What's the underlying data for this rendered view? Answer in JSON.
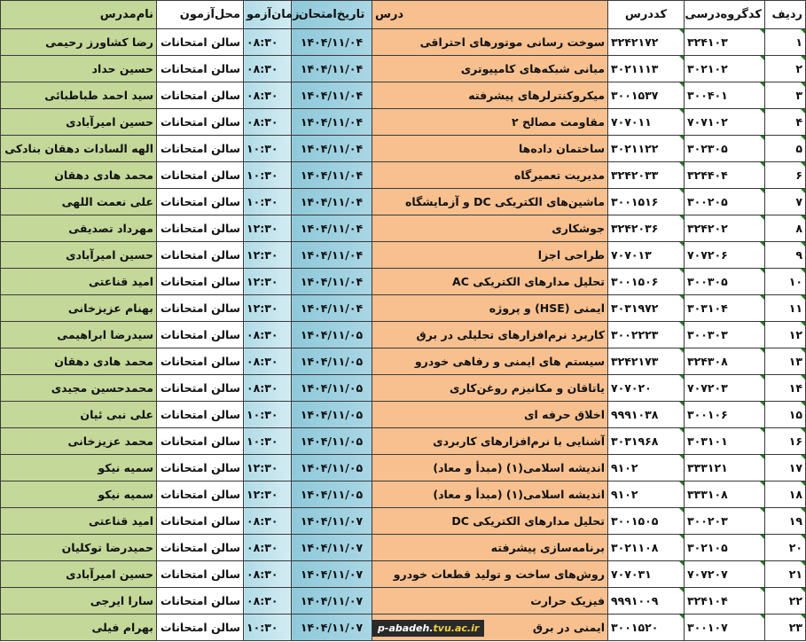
{
  "headers": {
    "row": "ردیف",
    "group_code": "کدگروه‌درسی",
    "course_code": "کددرس",
    "course": "درس",
    "date": "تاریخ‌امتحان",
    "time": "زمان‌آزمو",
    "place": "محل‌آزمون",
    "teacher": "نام‌مدرس"
  },
  "rows": [
    {
      "row": "۱",
      "group_code": "۳۲۴۱۰۳",
      "course_code": "۳۲۴۲۱۷۲",
      "course": "سوخت رسانی موتورهای احتراقی",
      "date": "۱۴۰۴/۱۱/۰۴",
      "time": "۰۸:۳۰",
      "place": "سالن امتحانات",
      "teacher": "رضا کشاورز رحیمی"
    },
    {
      "row": "۲",
      "group_code": "۳۰۲۱۰۲",
      "course_code": "۳۰۲۱۱۱۳",
      "course": "مبانی شبکه‌های کامپیوتری",
      "date": "۱۴۰۴/۱۱/۰۴",
      "time": "۰۸:۳۰",
      "place": "سالن امتحانات",
      "teacher": "حسین حداد"
    },
    {
      "row": "۳",
      "group_code": "۳۰۰۴۰۱",
      "course_code": "۳۰۰۱۵۳۷",
      "course": "میکروکنترلرهای پیشرفته",
      "date": "۱۴۰۴/۱۱/۰۴",
      "time": "۰۸:۳۰",
      "place": "سالن امتحانات",
      "teacher": "سید احمد طباطبائی"
    },
    {
      "row": "۴",
      "group_code": "۷۰۷۱۰۲",
      "course_code": "۷۰۷۰۱۱",
      "course": "مقاومت مصالح ۲",
      "date": "۱۴۰۴/۱۱/۰۴",
      "time": "۰۸:۳۰",
      "place": "سالن امتحانات",
      "teacher": "حسین امیرآبادی"
    },
    {
      "row": "۵",
      "group_code": "۳۰۲۳۰۵",
      "course_code": "۳۰۲۱۱۲۲",
      "course": "ساختمان داده‌ها",
      "date": "۱۴۰۴/۱۱/۰۴",
      "time": "۱۰:۳۰",
      "place": "سالن امتحانات",
      "teacher": "الهه السادات دهقان بنادکی"
    },
    {
      "row": "۶",
      "group_code": "۳۲۴۴۰۴",
      "course_code": "۳۲۴۲۰۳۳",
      "course": "مدیریت تعمیرگاه",
      "date": "۱۴۰۴/۱۱/۰۴",
      "time": "۱۰:۳۰",
      "place": "سالن امتحانات",
      "teacher": "محمد هادی دهقان"
    },
    {
      "row": "۷",
      "group_code": "۳۰۰۲۰۵",
      "course_code": "۳۰۰۱۵۱۶",
      "course": "ماشین‌های الکتریکی DC و آزمایشگاه",
      "date": "۱۴۰۴/۱۱/۰۴",
      "time": "۱۰:۳۰",
      "place": "سالن امتحانات",
      "teacher": "علی نعمت اللهی"
    },
    {
      "row": "۸",
      "group_code": "۳۲۴۲۰۲",
      "course_code": "۳۲۴۲۰۳۶",
      "course": "جوشکاری",
      "date": "۱۴۰۴/۱۱/۰۴",
      "time": "۱۲:۳۰",
      "place": "سالن امتحانات",
      "teacher": "مهرداد تصدیقی"
    },
    {
      "row": "۹",
      "group_code": "۷۰۷۲۰۶",
      "course_code": "۷۰۷۰۱۳",
      "course": "طراحی اجزا",
      "date": "۱۴۰۴/۱۱/۰۴",
      "time": "۱۲:۳۰",
      "place": "سالن امتحانات",
      "teacher": "حسین امیرآبادی"
    },
    {
      "row": "۱۰",
      "group_code": "۳۰۰۳۰۵",
      "course_code": "۳۰۰۱۵۰۶",
      "course": "تحلیل مدارهای الکتریکی AC",
      "date": "۱۴۰۴/۱۱/۰۴",
      "time": "۱۲:۳۰",
      "place": "سالن امتحانات",
      "teacher": "امید قناعتی"
    },
    {
      "row": "۱۱",
      "group_code": "۳۰۳۱۰۴",
      "course_code": "۳۰۳۱۹۷۲",
      "course": "ایمنی (HSE) و پروژه",
      "date": "۱۴۰۴/۱۱/۰۴",
      "time": "۱۲:۳۰",
      "place": "سالن امتحانات",
      "teacher": "بهنام عزیزخانی"
    },
    {
      "row": "۱۲",
      "group_code": "۳۰۰۳۰۳",
      "course_code": "۳۰۰۲۲۲۳",
      "course": "کاربرد نرم‌افزارهای تحلیلی در برق",
      "date": "۱۴۰۴/۱۱/۰۵",
      "time": "۰۸:۳۰",
      "place": "سالن امتحانات",
      "teacher": "سیدرضا ابراهیمی"
    },
    {
      "row": "۱۳",
      "group_code": "۳۲۴۳۰۸",
      "course_code": "۳۲۴۲۱۷۳",
      "course": "سیستم های ایمنی و رفاهی خودرو",
      "date": "۱۴۰۴/۱۱/۰۵",
      "time": "۰۸:۳۰",
      "place": "سالن امتحانات",
      "teacher": "محمد هادی دهقان"
    },
    {
      "row": "۱۴",
      "group_code": "۷۰۷۲۰۳",
      "course_code": "۷۰۷۰۲۰",
      "course": "یاتاقان و مکانیزم روغن‌کاری",
      "date": "۱۴۰۴/۱۱/۰۵",
      "time": "۰۸:۳۰",
      "place": "سالن امتحانات",
      "teacher": "محمدحسین مجیدی"
    },
    {
      "row": "۱۵",
      "group_code": "۳۰۰۱۰۶",
      "course_code": "۹۹۹۱۰۳۸",
      "course": "اخلاق حرفه ای",
      "date": "۱۴۰۴/۱۱/۰۵",
      "time": "۱۰:۳۰",
      "place": "سالن امتحانات",
      "teacher": "علی نبی ئیان"
    },
    {
      "row": "۱۶",
      "group_code": "۳۰۳۱۰۱",
      "course_code": "۳۰۳۱۹۶۸",
      "course": "آشنایی با نرم‌افزارهای کاربردی",
      "date": "۱۴۰۴/۱۱/۰۵",
      "time": "۱۰:۳۰",
      "place": "سالن امتحانات",
      "teacher": "محمد عزیزخانی"
    },
    {
      "row": "۱۷",
      "group_code": "۳۳۳۱۲۱",
      "course_code": "۹۱۰۲",
      "course": "اندیشه اسلامی(۱)  (مبدأ و معاد)",
      "date": "۱۴۰۴/۱۱/۰۵",
      "time": "۱۲:۳۰",
      "place": "سالن امتحانات",
      "teacher": "سمیه نیکو"
    },
    {
      "row": "۱۸",
      "group_code": "۳۳۳۱۰۸",
      "course_code": "۹۱۰۲",
      "course": "اندیشه اسلامی(۱)  (مبدأ و معاد)",
      "date": "۱۴۰۴/۱۱/۰۵",
      "time": "۱۲:۳۰",
      "place": "سالن امتحانات",
      "teacher": "سمیه نیکو"
    },
    {
      "row": "۱۹",
      "group_code": "۳۰۰۲۰۳",
      "course_code": "۳۰۰۱۵۰۵",
      "course": "تحلیل مدارهای الکتریکی DC",
      "date": "۱۴۰۴/۱۱/۰۷",
      "time": "۰۸:۳۰",
      "place": "سالن امتحانات",
      "teacher": "امید قناعتی"
    },
    {
      "row": "۲۰",
      "group_code": "۳۰۲۱۰۵",
      "course_code": "۳۰۲۱۱۰۸",
      "course": "برنامه‌سازی پیشرفته",
      "date": "۱۴۰۴/۱۱/۰۷",
      "time": "۰۸:۳۰",
      "place": "سالن امتحانات",
      "teacher": "حمیدرضا توکلیان"
    },
    {
      "row": "۲۱",
      "group_code": "۷۰۷۲۰۷",
      "course_code": "۷۰۷۰۳۱",
      "course": "روش‌های ساخت و تولید قطعات خودرو",
      "date": "۱۴۰۴/۱۱/۰۷",
      "time": "۰۸:۳۰",
      "place": "سالن امتحانات",
      "teacher": "حسین امیرآبادی"
    },
    {
      "row": "۲۲",
      "group_code": "۳۲۴۱۰۴",
      "course_code": "۹۹۹۱۰۰۹",
      "course": "فیزیک حرارت",
      "date": "۱۴۰۴/۱۱/۰۷",
      "time": "۰۸:۳۰",
      "place": "سالن امتحانات",
      "teacher": "سارا ایرجی"
    },
    {
      "row": "۲۳",
      "group_code": "۳۰۰۱۰۷",
      "course_code": "۳۰۰۱۵۲۰",
      "course": "ایمنی در برق",
      "date": "۱۴۰۴/۱۱/۰۷",
      "time": "۱۰:۳۰",
      "place": "سالن امتحانات",
      "teacher": "بهرام فیلی"
    }
  ],
  "watermark": {
    "prefix": "p-abadeh.",
    "domain": "tvu.ac.ir"
  },
  "colors": {
    "course_column": "#f8c08f",
    "date_column": "#8fc9da",
    "time_column": "#b7dee8",
    "teacher_column": "#c4d89a"
  }
}
